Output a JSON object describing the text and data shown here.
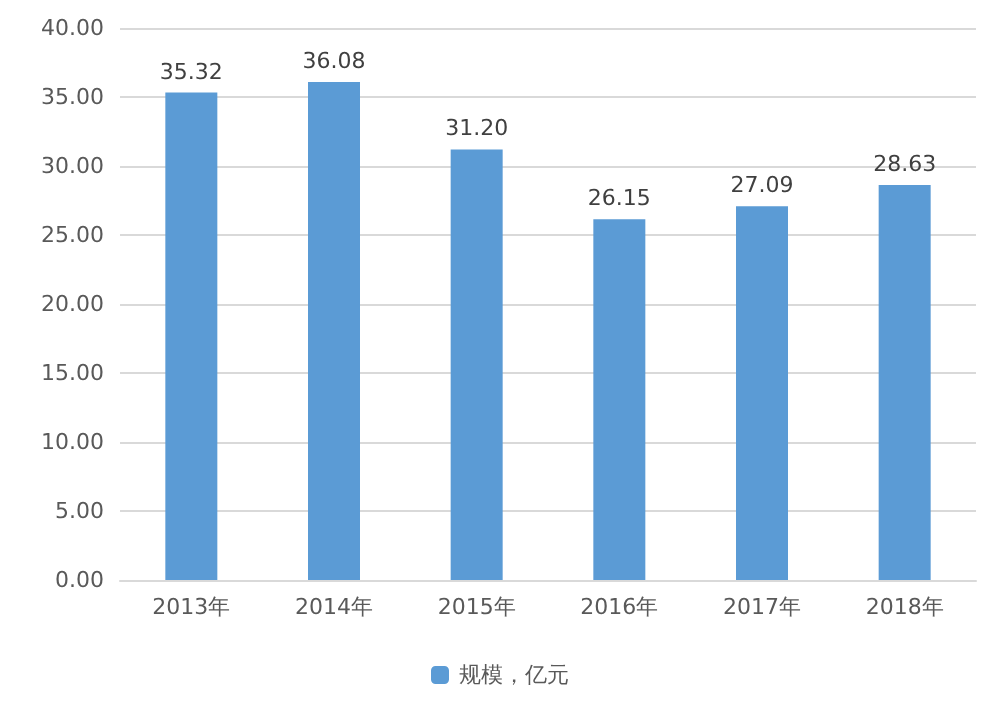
{
  "chart_data": {
    "type": "bar",
    "categories": [
      "2013年",
      "2014年",
      "2015年",
      "2016年",
      "2017年",
      "2018年"
    ],
    "series": [
      {
        "name": "规模，亿元",
        "color": "#5b9bd5",
        "values": [
          35.32,
          36.08,
          31.2,
          26.15,
          27.09,
          28.63
        ],
        "value_labels": [
          "35.32",
          "36.08",
          "31.20",
          "26.15",
          "27.09",
          "28.63"
        ]
      }
    ],
    "ylim": [
      0,
      40
    ],
    "yticks": [
      {
        "value": 0,
        "label": "0.00"
      },
      {
        "value": 5,
        "label": "5.00"
      },
      {
        "value": 10,
        "label": "10.00"
      },
      {
        "value": 15,
        "label": "15.00"
      },
      {
        "value": 20,
        "label": "20.00"
      },
      {
        "value": 25,
        "label": "25.00"
      },
      {
        "value": 30,
        "label": "30.00"
      },
      {
        "value": 35,
        "label": "35.00"
      },
      {
        "value": 40,
        "label": "40.00"
      }
    ],
    "grid": "y",
    "legend": "bottom"
  }
}
